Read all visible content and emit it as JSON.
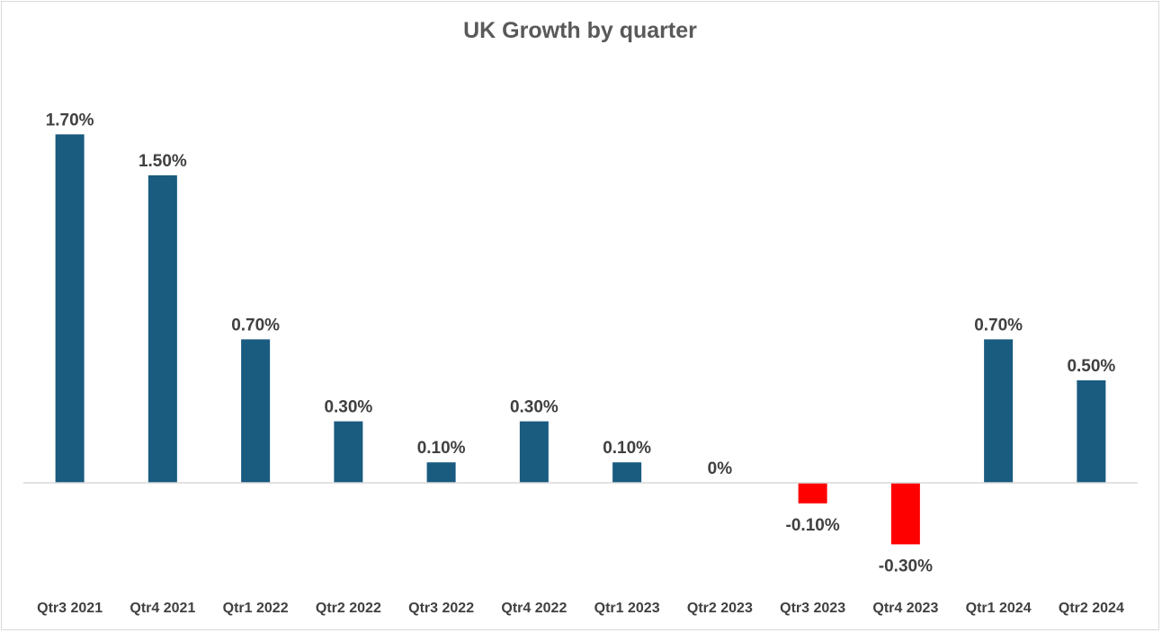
{
  "chart_data": {
    "type": "bar",
    "title": "UK Growth by quarter",
    "xlabel": "",
    "ylabel": "",
    "ylim": [
      -0.4,
      1.8
    ],
    "grid": false,
    "legend": "none",
    "categories": [
      "Qtr3 2021",
      "Qtr4 2021",
      "Qtr1 2022",
      "Qtr2 2022",
      "Qtr3 2022",
      "Qtr4 2022",
      "Qtr1 2023",
      "Qtr2 2023",
      "Qtr3 2023",
      "Qtr4 2023",
      "Qtr1 2024",
      "Qtr2 2024"
    ],
    "values": [
      1.7,
      1.5,
      0.7,
      0.3,
      0.1,
      0.3,
      0.1,
      0,
      -0.1,
      -0.3,
      0.7,
      0.5
    ],
    "data_labels": [
      "1.70%",
      "1.50%",
      "0.70%",
      "0.30%",
      "0.10%",
      "0.30%",
      "0.10%",
      "0%",
      "-0.10%",
      "-0.30%",
      "0.70%",
      "0.50%"
    ],
    "series": [
      {
        "name": "UK Growth",
        "values": [
          1.7,
          1.5,
          0.7,
          0.3,
          0.1,
          0.3,
          0.1,
          0,
          -0.1,
          -0.3,
          0.7,
          0.5
        ]
      }
    ],
    "colors": {
      "positive": "#1a5b80",
      "negative": "#ff0000",
      "axis": "#d9d9d9",
      "label": "#404040",
      "title": "#595959"
    }
  }
}
